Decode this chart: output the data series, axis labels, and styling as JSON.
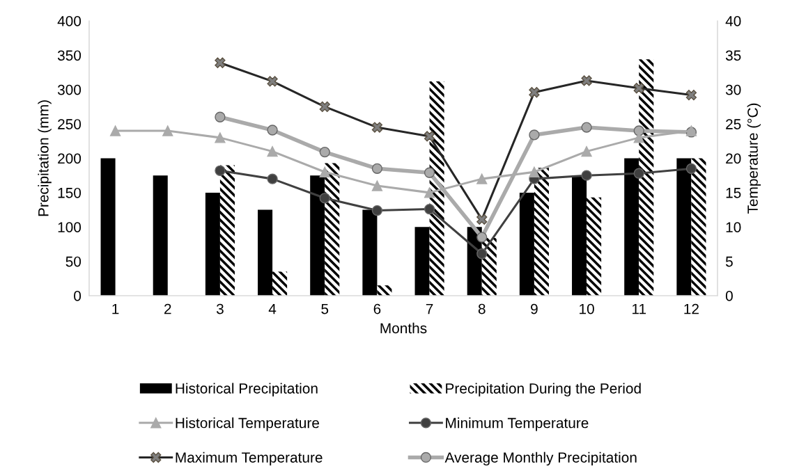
{
  "chart_data": {
    "type": "bar",
    "xlabel": "Months",
    "ylabel": "Precipitation (mm)",
    "y2label": "Temperature (°C)",
    "categories": [
      "1",
      "2",
      "3",
      "4",
      "5",
      "6",
      "7",
      "8",
      "9",
      "10",
      "11",
      "12"
    ],
    "series": [
      {
        "name": "Historical Precipitation",
        "color": "#000000",
        "values": [
          200,
          175,
          150,
          125,
          175,
          125,
          100,
          100,
          150,
          175,
          200,
          200
        ]
      },
      {
        "name": "Precipitation During the Period",
        "color": "#000000",
        "values": [
          null,
          null,
          190,
          35,
          193,
          15,
          312,
          84,
          186,
          143,
          344,
          200
        ]
      },
      {
        "name": "Historical Temperature",
        "type": "line",
        "axis": "y2",
        "color": "#aaaaaa",
        "marker": "triangle",
        "values": [
          24,
          24,
          23,
          21,
          18,
          16,
          15,
          17,
          18,
          21,
          23,
          24
        ]
      },
      {
        "name": "Minimum Temperature",
        "type": "line",
        "axis": "y2",
        "color": "#404040",
        "marker": "circle",
        "values": [
          null,
          null,
          18.2,
          17.0,
          14.2,
          12.4,
          12.6,
          6.1,
          17.0,
          17.5,
          17.8,
          18.5
        ]
      },
      {
        "name": "Maximum Temperature",
        "type": "line",
        "axis": "y2",
        "color": "#262626",
        "marker": "cross",
        "values": [
          null,
          null,
          33.9,
          31.2,
          27.5,
          24.5,
          23.2,
          11.1,
          29.6,
          31.3,
          30.2,
          29.2
        ]
      },
      {
        "name": "Average Monthly Precipitation",
        "type": "line",
        "axis": "y2",
        "color": "#aaaaaa",
        "marker": "circle",
        "values": [
          null,
          null,
          26.0,
          24.1,
          20.9,
          18.5,
          17.9,
          8.5,
          23.4,
          24.5,
          24.0,
          23.8
        ]
      }
    ],
    "ylim": [
      0,
      400
    ],
    "yticks": [
      0,
      50,
      100,
      150,
      200,
      250,
      300,
      350,
      400
    ],
    "y2lim": [
      0,
      40
    ],
    "y2ticks": [
      0,
      5,
      10,
      15,
      20,
      25,
      30,
      35,
      40
    ],
    "grid": false,
    "legend": "bottom"
  }
}
